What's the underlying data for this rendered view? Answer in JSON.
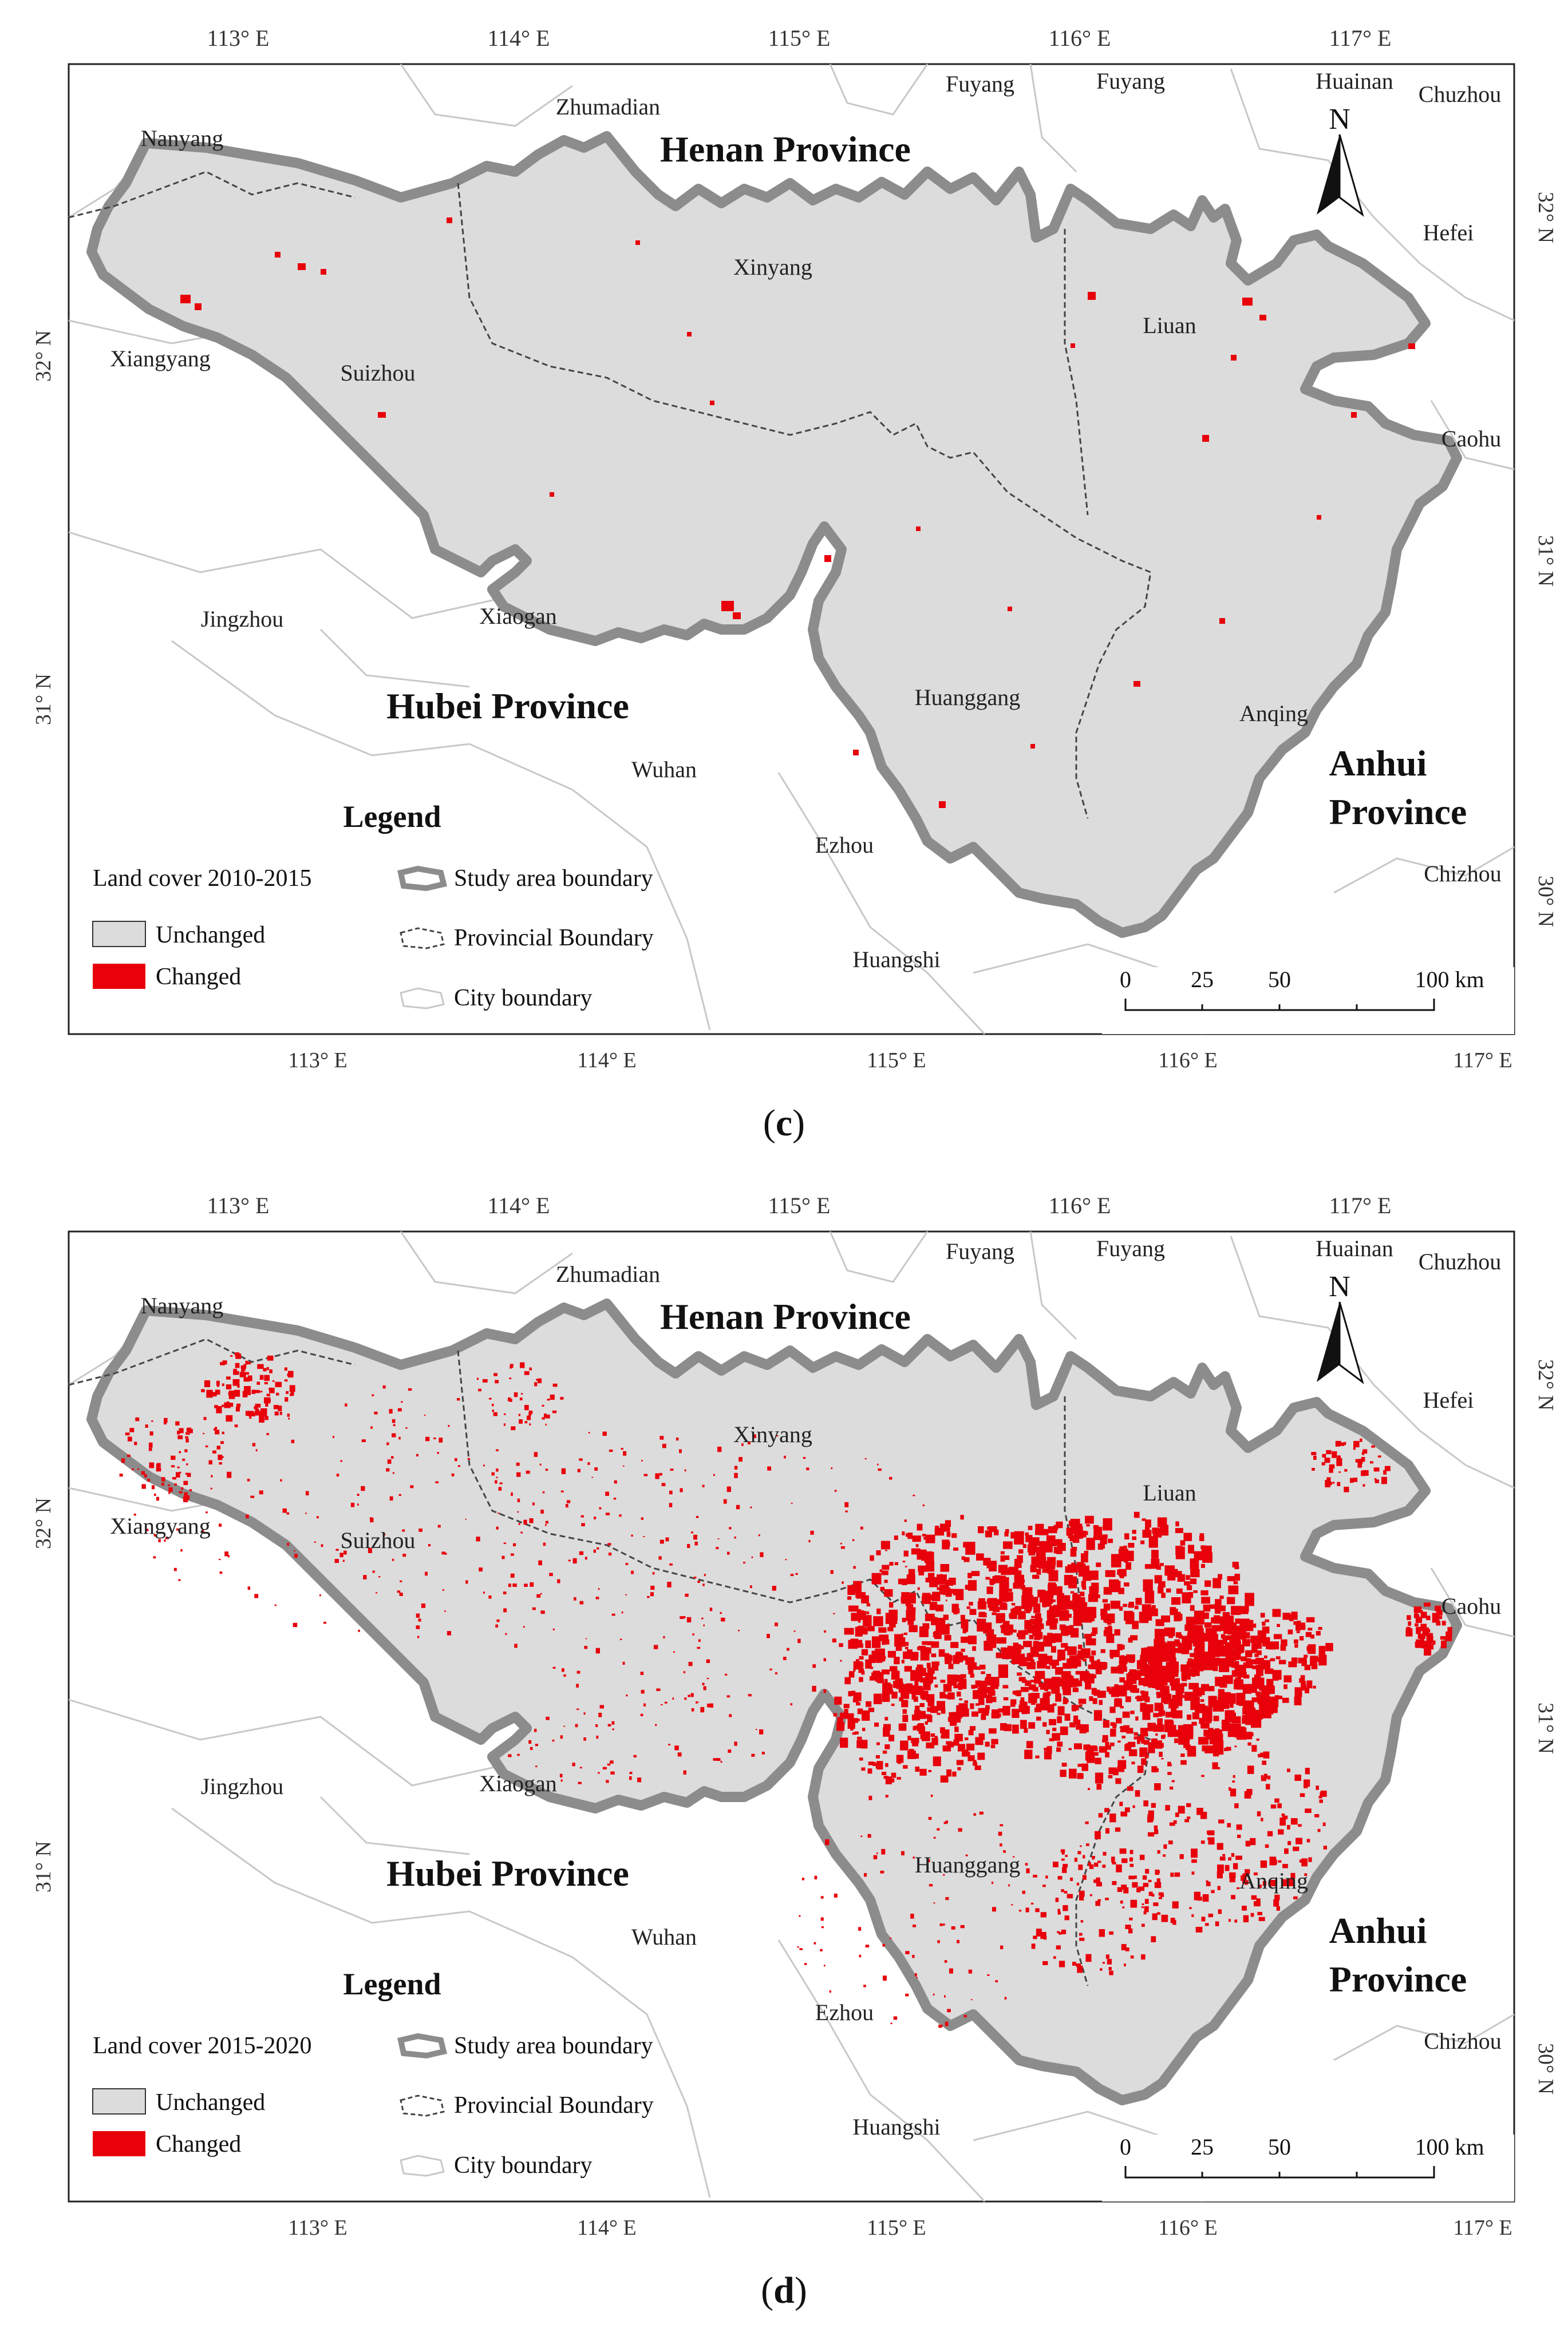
{
  "panels": [
    {
      "sublabel": "c",
      "legend": {
        "title": "Legend",
        "subtitle": "Land cover 2010-2015",
        "unchanged": "Unchanged",
        "changed": "Changed",
        "study": "Study area boundary",
        "provincial": "Provincial Boundary",
        "city": "City boundary"
      },
      "change_intensity": "low"
    },
    {
      "sublabel": "d",
      "legend": {
        "title": "Legend",
        "subtitle": "Land cover 2015-2020",
        "unchanged": "Unchanged",
        "changed": "Changed",
        "study": "Study area boundary",
        "provincial": "Provincial Boundary",
        "city": "City boundary"
      },
      "change_intensity": "high"
    }
  ],
  "lon_ticks": [
    "113° E",
    "114° E",
    "115° E",
    "116° E",
    "117° E"
  ],
  "lat_ticks": [
    "32° N",
    "31° N",
    "30° N"
  ],
  "provinces": {
    "henan": "Henan Province",
    "hubei": "Hubei Province",
    "anhui_1": "Anhui",
    "anhui_2": "Province"
  },
  "cities": {
    "nanyang": "Nanyang",
    "zhumadian": "Zhumadian",
    "fuyang_1": "Fuyang",
    "fuyang_2": "Fuyang",
    "huainan": "Huainan",
    "chuzhou": "Chuzhou",
    "hefei": "Hefei",
    "xinyang": "Xinyang",
    "liuan": "Liuan",
    "xiangyang": "Xiangyang",
    "suizhou": "Suizhou",
    "caohu": "Caohu",
    "jingzhou": "Jingzhou",
    "xiaogan": "Xiaogan",
    "huanggang": "Huanggang",
    "anqing": "Anqing",
    "wuhan": "Wuhan",
    "ezhou": "Ezhou",
    "chizhou": "Chizhou",
    "huangshi": "Huangshi"
  },
  "north_label": "N",
  "scale_ticks": [
    "0",
    "25",
    "50",
    "100 km"
  ],
  "colors": {
    "unchanged": "#dcdcdc",
    "changed": "#e8000b",
    "study_boundary": "#8c8c8c",
    "provincial_boundary": "#444444",
    "city_boundary": "#c8c8c8"
  }
}
